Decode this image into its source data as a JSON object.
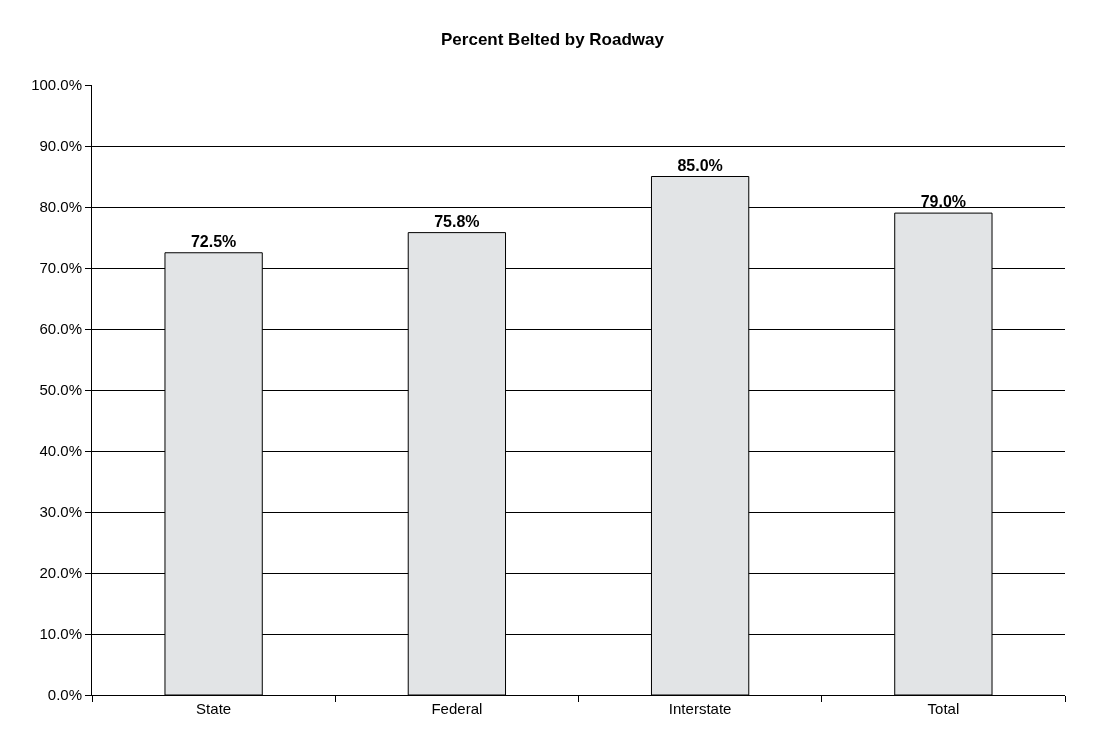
{
  "chart_data": {
    "type": "bar",
    "title": "Percent Belted by Roadway",
    "categories": [
      "State",
      "Federal",
      "Interstate",
      "Total"
    ],
    "values": [
      72.5,
      75.8,
      85.0,
      79.0
    ],
    "value_labels": [
      "72.5%",
      "75.8%",
      "85.0%",
      "79.0%"
    ],
    "color": "#e2e4e6",
    "ylim": [
      0,
      100
    ],
    "yticks": [
      {
        "value": 0,
        "label": "0.0%"
      },
      {
        "value": 10,
        "label": "10.0%"
      },
      {
        "value": 20,
        "label": "20.0%"
      },
      {
        "value": 30,
        "label": "30.0%"
      },
      {
        "value": 40,
        "label": "40.0%"
      },
      {
        "value": 50,
        "label": "50.0%"
      },
      {
        "value": 60,
        "label": "60.0%"
      },
      {
        "value": 70,
        "label": "70.0%"
      },
      {
        "value": 80,
        "label": "80.0%"
      },
      {
        "value": 90,
        "label": "90.0%"
      },
      {
        "value": 100,
        "label": "100.0%"
      }
    ],
    "grid": "y"
  }
}
